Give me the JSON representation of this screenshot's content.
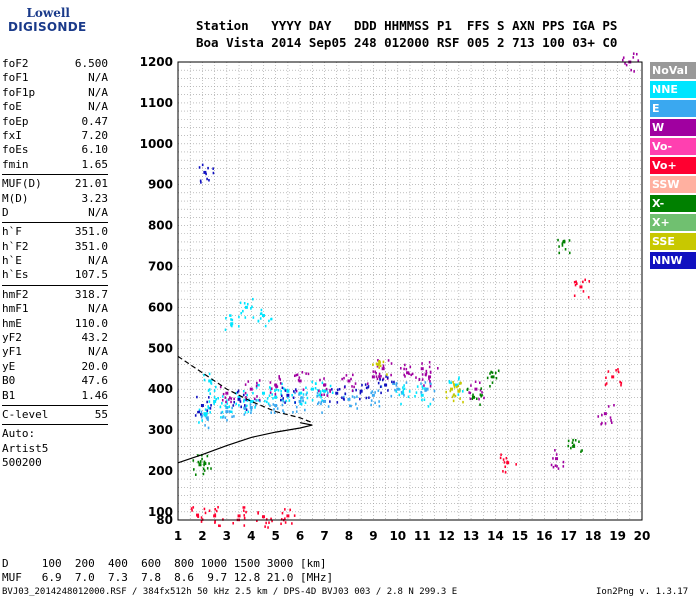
{
  "logo": {
    "line1": "Lowell",
    "line2": "DIGISONDE"
  },
  "header": {
    "row1": "Station   YYYY DAY   DDD HHMMSS P1  FFS S AXN PPS IGA PS",
    "row2": "Boa Vista 2014 Sep05 248 012000 RSF 005 2 713 100 03+ C0"
  },
  "params": [
    {
      "k": "foF2",
      "v": "6.500"
    },
    {
      "k": "foF1",
      "v": "N/A"
    },
    {
      "k": "foF1p",
      "v": "N/A"
    },
    {
      "k": "foE",
      "v": "N/A"
    },
    {
      "k": "foEp",
      "v": "0.47"
    },
    {
      "k": "fxI",
      "v": "7.20"
    },
    {
      "k": "foEs",
      "v": "6.10"
    },
    {
      "k": "fmin",
      "v": "1.65"
    },
    {
      "sep": true
    },
    {
      "k": "MUF(D)",
      "v": "21.01"
    },
    {
      "k": "M(D)",
      "v": "3.23"
    },
    {
      "k": "D",
      "v": "N/A"
    },
    {
      "sep": true
    },
    {
      "k": "h`F",
      "v": "351.0"
    },
    {
      "k": "h`F2",
      "v": "351.0"
    },
    {
      "k": "h`E",
      "v": "N/A"
    },
    {
      "k": "h`Es",
      "v": "107.5"
    },
    {
      "sep": true
    },
    {
      "k": "hmF2",
      "v": "318.7"
    },
    {
      "k": "hmF1",
      "v": "N/A"
    },
    {
      "k": "hmE",
      "v": "110.0"
    },
    {
      "k": "yF2",
      "v": "43.2"
    },
    {
      "k": "yF1",
      "v": "N/A"
    },
    {
      "k": "yE",
      "v": "20.0"
    },
    {
      "k": "B0",
      "v": "47.6"
    },
    {
      "k": "B1",
      "v": "1.46"
    },
    {
      "sep": true
    },
    {
      "k": "C-level",
      "v": "55"
    },
    {
      "sep": true
    },
    {
      "k": "Auto:",
      "v": ""
    },
    {
      "k": "Artist5",
      "v": ""
    },
    {
      "k": "500200",
      "v": ""
    }
  ],
  "legend": [
    {
      "label": "NoVal",
      "color": "#999999"
    },
    {
      "label": "NNE",
      "color": "#00e5ff"
    },
    {
      "label": "E",
      "color": "#3aa8f0"
    },
    {
      "label": "W",
      "color": "#a000a0"
    },
    {
      "label": "Vo-",
      "color": "#ff40b0"
    },
    {
      "label": "Vo+",
      "color": "#ff0030"
    },
    {
      "label": "SSW",
      "color": "#ffb0a0"
    },
    {
      "label": "X-",
      "color": "#008000"
    },
    {
      "label": "X+",
      "color": "#70c070"
    },
    {
      "label": "SSE",
      "color": "#c8c800"
    },
    {
      "label": "NNW",
      "color": "#1010c0"
    }
  ],
  "bottom": {
    "d_line": "D     100  200  400  600  800 1000 1500 3000 [km]",
    "muf_line": "MUF   6.9  7.0  7.3  7.8  8.6  9.7 12.8 21.0 [MHz]",
    "file_line": "BVJ03_2014248012000.RSF / 384fx512h 50 kHz 2.5 km / DPS-4D BVJ03 003 / 2.8 N 299.3 E",
    "version": "Ion2Png v. 1.3.17"
  },
  "chart_data": {
    "type": "scatter",
    "title": "",
    "xlabel": "",
    "ylabel": "",
    "xlim": [
      1,
      20
    ],
    "ylim": [
      80,
      1200
    ],
    "x_ticks": [
      1,
      2,
      3,
      4,
      5,
      6,
      7,
      8,
      9,
      10,
      11,
      12,
      13,
      14,
      15,
      16,
      17,
      18,
      19,
      20
    ],
    "y_ticks": [
      80,
      100,
      200,
      300,
      400,
      500,
      600,
      700,
      800,
      900,
      1000,
      1100,
      1200
    ],
    "grid": true,
    "series": [
      {
        "name": "NNE",
        "color": "#00e5ff",
        "points": [
          [
            2.1,
            340
          ],
          [
            2.5,
            370
          ],
          [
            3.0,
            355
          ],
          [
            3.5,
            380
          ],
          [
            4.0,
            370
          ],
          [
            4.5,
            390
          ],
          [
            5.0,
            380
          ],
          [
            5.5,
            395
          ],
          [
            6.0,
            390
          ],
          [
            6.5,
            400
          ],
          [
            7.0,
            395
          ],
          [
            3.2,
            560
          ],
          [
            3.8,
            600
          ],
          [
            4.5,
            580
          ],
          [
            2.3,
            420
          ],
          [
            10.2,
            390
          ],
          [
            11.0,
            385
          ],
          [
            12.4,
            410
          ]
        ]
      },
      {
        "name": "E",
        "color": "#3aa8f0",
        "points": [
          [
            2.2,
            330
          ],
          [
            3.0,
            345
          ],
          [
            4.0,
            355
          ],
          [
            5.0,
            360
          ],
          [
            6.0,
            370
          ],
          [
            7.0,
            370
          ],
          [
            8.0,
            375
          ],
          [
            9.0,
            385
          ],
          [
            10.0,
            400
          ],
          [
            11.2,
            400
          ]
        ]
      },
      {
        "name": "W",
        "color": "#a000a0",
        "points": [
          [
            3.0,
            390
          ],
          [
            4.0,
            400
          ],
          [
            5.0,
            410
          ],
          [
            6.0,
            420
          ],
          [
            7.0,
            410
          ],
          [
            8.0,
            420
          ],
          [
            9.0,
            430
          ],
          [
            9.4,
            450
          ],
          [
            10.4,
            440
          ],
          [
            11.0,
            450
          ],
          [
            11.3,
            430
          ],
          [
            13.2,
            400
          ],
          [
            16.5,
            230
          ],
          [
            18.5,
            340
          ],
          [
            19.5,
            1200
          ]
        ]
      },
      {
        "name": "NNW",
        "color": "#1010c0",
        "points": [
          [
            2.0,
            360
          ],
          [
            3.5,
            375
          ],
          [
            5.5,
            385
          ],
          [
            7.5,
            390
          ],
          [
            8.5,
            395
          ],
          [
            9.5,
            410
          ],
          [
            2.1,
            930
          ]
        ]
      },
      {
        "name": "Vo+",
        "color": "#ff0030",
        "points": [
          [
            1.8,
            92
          ],
          [
            2.5,
            90
          ],
          [
            3.5,
            90
          ],
          [
            4.5,
            88
          ],
          [
            5.5,
            90
          ],
          [
            14.5,
            220
          ],
          [
            17.5,
            650
          ],
          [
            18.8,
            430
          ]
        ]
      },
      {
        "name": "X-",
        "color": "#008000",
        "points": [
          [
            1.9,
            215
          ],
          [
            2.1,
            218
          ],
          [
            13.1,
            380
          ],
          [
            13.9,
            430
          ],
          [
            16.8,
            760
          ],
          [
            17.2,
            260
          ]
        ]
      },
      {
        "name": "SSE",
        "color": "#c8c800",
        "points": [
          [
            9.2,
            460
          ],
          [
            12.2,
            400
          ],
          [
            12.5,
            395
          ]
        ]
      }
    ],
    "lines": [
      {
        "name": "profile",
        "color": "#000000",
        "points": [
          [
            1,
            220
          ],
          [
            2,
            240
          ],
          [
            3,
            262
          ],
          [
            4,
            282
          ],
          [
            5,
            295
          ],
          [
            6,
            305
          ],
          [
            6.5,
            312
          ],
          [
            6.0,
            318
          ]
        ]
      },
      {
        "name": "profile-dashed",
        "color": "#000000",
        "dashed": true,
        "points": [
          [
            1,
            480
          ],
          [
            2,
            440
          ],
          [
            3,
            400
          ],
          [
            4,
            370
          ],
          [
            5,
            345
          ],
          [
            6,
            330
          ],
          [
            6.5,
            318
          ]
        ]
      }
    ]
  }
}
